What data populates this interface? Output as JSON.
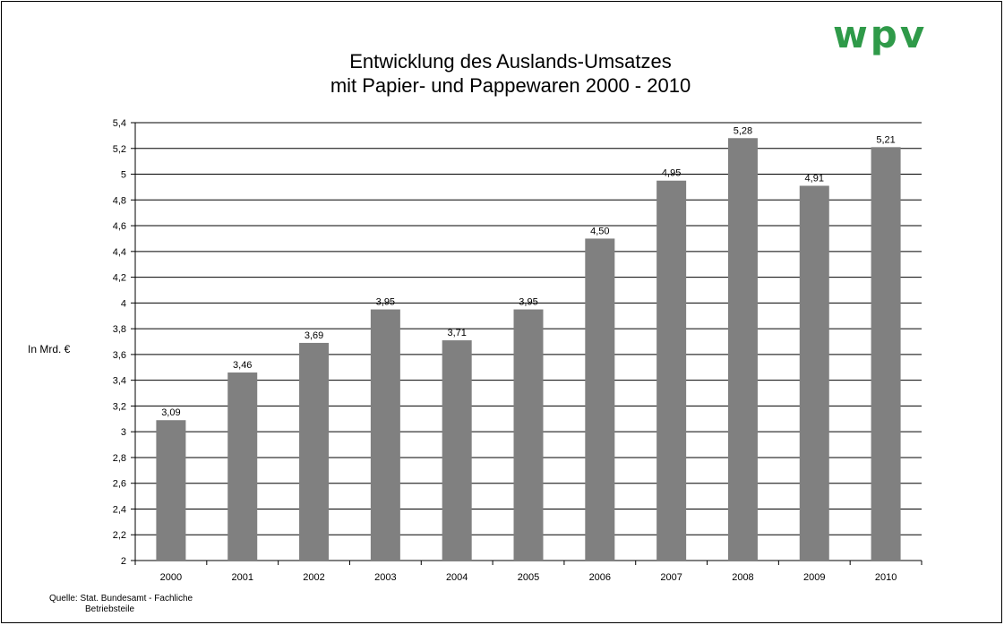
{
  "logo": "wpv",
  "title_line1": "Entwicklung des Auslands-Umsatzes",
  "title_line2": "mit Papier- und Pappewaren 2000 - 2010",
  "ylabel": "In Mrd. €",
  "source_line1": "Quelle: Stat. Bundesamt - Fachliche",
  "source_line2": "Betriebsteile",
  "colors": {
    "bar": "#808080",
    "logo": "#2f9a49"
  },
  "chart_data": {
    "type": "bar",
    "title": "Entwicklung des Auslands-Umsatzes mit Papier- und Pappewaren 2000 - 2010",
    "xlabel": "",
    "ylabel": "In Mrd. €",
    "categories": [
      "2000",
      "2001",
      "2002",
      "2003",
      "2004",
      "2005",
      "2006",
      "2007",
      "2008",
      "2009",
      "2010"
    ],
    "values": [
      3.09,
      3.46,
      3.69,
      3.95,
      3.71,
      3.95,
      4.5,
      4.95,
      5.28,
      4.91,
      5.21
    ],
    "value_labels": [
      "3,09",
      "3,46",
      "3,69",
      "3,95",
      "3,71",
      "3,95",
      "4,50",
      "4,95",
      "5,28",
      "4,91",
      "5,21"
    ],
    "yticks": [
      "2",
      "2,2",
      "2,4",
      "2,6",
      "2,8",
      "3",
      "3,2",
      "3,4",
      "3,6",
      "3,8",
      "4",
      "4,2",
      "4,4",
      "4,6",
      "4,8",
      "5",
      "5,2",
      "5,4"
    ],
    "ylim": [
      2,
      5.4
    ],
    "grid": true,
    "legend": "none"
  }
}
